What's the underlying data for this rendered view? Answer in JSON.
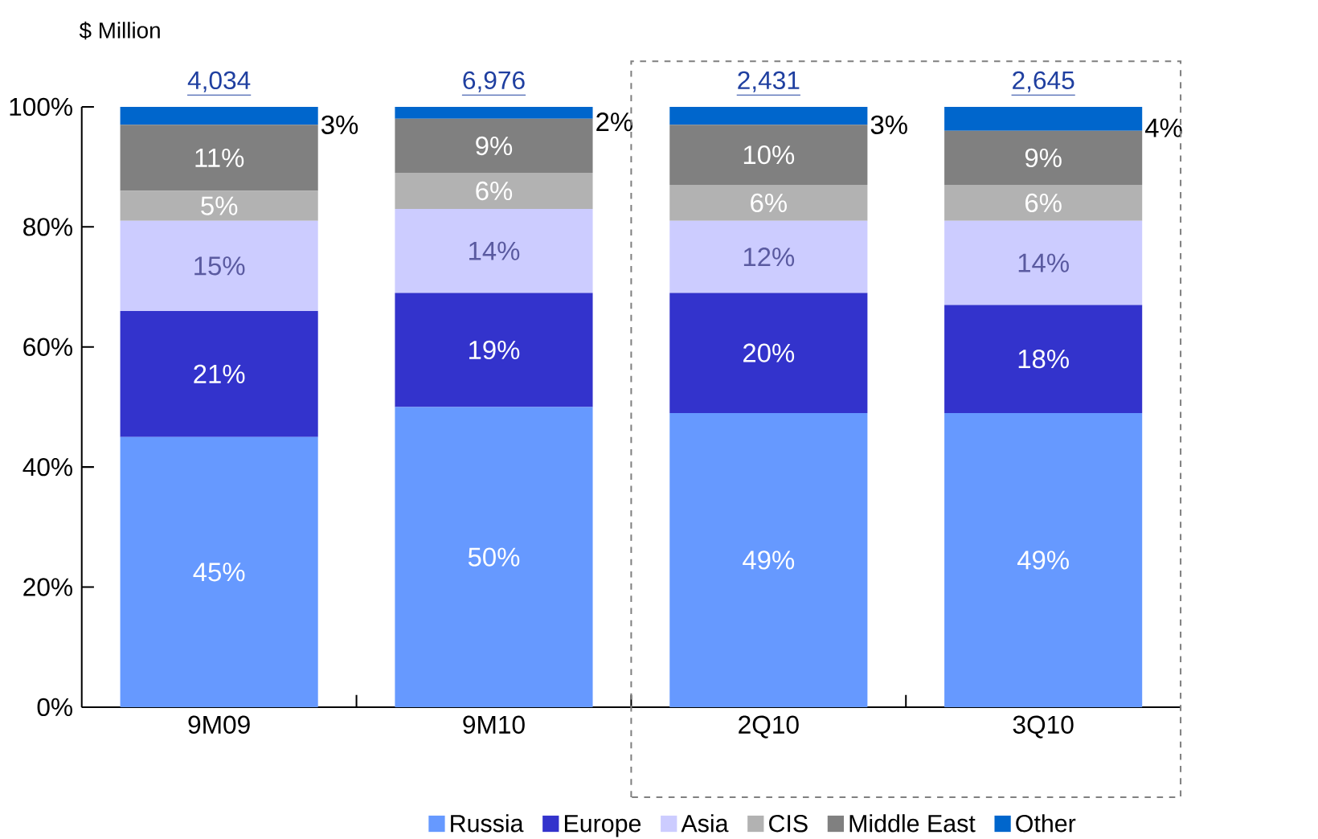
{
  "chart_data": {
    "type": "bar",
    "stacked": true,
    "ylabel": "$ Million",
    "categories": [
      "9M09",
      "9M10",
      "2Q10",
      "3Q10"
    ],
    "series": [
      {
        "name": "Russia",
        "color": "#6699ff",
        "values": [
          45,
          50,
          49,
          49
        ],
        "value_labels": [
          "45%",
          "50%",
          "49%",
          "49%"
        ]
      },
      {
        "name": "Europe",
        "color": "#3333cc",
        "values": [
          21,
          19,
          20,
          18
        ],
        "value_labels": [
          "21%",
          "19%",
          "20%",
          "18%"
        ]
      },
      {
        "name": "Asia",
        "color": "#ccccff",
        "values": [
          15,
          14,
          12,
          14
        ],
        "value_labels": [
          "15%",
          "14%",
          "12%",
          "14%"
        ]
      },
      {
        "name": "CIS",
        "color": "#b2b2b2",
        "values": [
          5,
          6,
          6,
          6
        ],
        "value_labels": [
          "5%",
          "6%",
          "6%",
          "6%"
        ]
      },
      {
        "name": "Middle East",
        "color": "#808080",
        "values": [
          11,
          9,
          10,
          9
        ],
        "value_labels": [
          "11%",
          "9%",
          "10%",
          "9%"
        ]
      },
      {
        "name": "Other",
        "color": "#0066cc",
        "values": [
          3,
          2,
          3,
          4
        ],
        "value_labels": [
          "3%",
          "2%",
          "3%",
          "4%"
        ]
      }
    ],
    "annotations": [
      {
        "text": "4,034",
        "x": "9M09",
        "y": 100
      },
      {
        "text": "6,976",
        "x": "9M10",
        "y": 100
      },
      {
        "text": "2,431",
        "x": "2Q10",
        "y": 100
      },
      {
        "text": "2,645",
        "x": "3Q10",
        "y": 100
      }
    ],
    "ylim": [
      0,
      100
    ],
    "yticks": [
      {
        "value": 0,
        "label": "0%"
      },
      {
        "value": 20,
        "label": "20%"
      },
      {
        "value": 40,
        "label": "40%"
      },
      {
        "value": 60,
        "label": "60%"
      },
      {
        "value": 80,
        "label": "80%"
      },
      {
        "value": 100,
        "label": "100%"
      }
    ],
    "grid": false,
    "legend": "bottom"
  }
}
